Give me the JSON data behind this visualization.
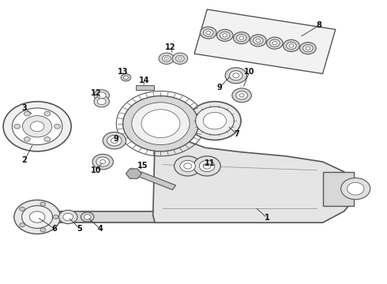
{
  "background_color": "#ffffff",
  "fig_width": 4.9,
  "fig_height": 3.6,
  "dpi": 100,
  "dgray": "#555555",
  "lgray": "#bbbbbb",
  "mgray": "#888888",
  "egray": "#e8e8e8",
  "fgray": "#f5f5f5",
  "dgray2": "#333333"
}
